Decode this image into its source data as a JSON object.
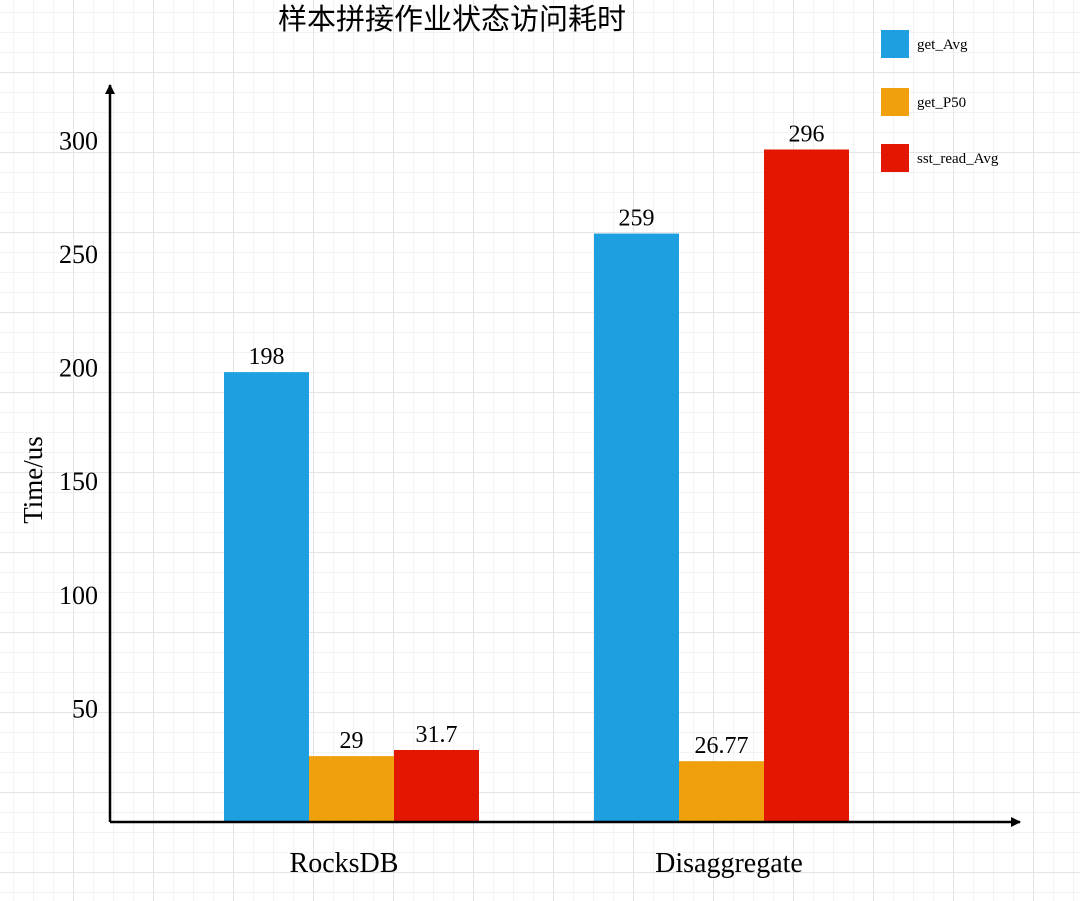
{
  "chart_data": {
    "type": "bar",
    "title": "样本拼接作业状态访问耗时",
    "xlabel": "",
    "ylabel": "Time/us",
    "categories": [
      "RocksDB",
      "Disaggregate"
    ],
    "series": [
      {
        "name": "get_Avg",
        "color": "#1e9fe0",
        "values": [
          198,
          259
        ],
        "labels": [
          "198",
          "259"
        ]
      },
      {
        "name": "get_P50",
        "color": "#f0a00c",
        "values": [
          29,
          26.77
        ],
        "labels": [
          "29",
          "26.77"
        ]
      },
      {
        "name": "sst_read_Avg",
        "color": "#e31600",
        "values": [
          31.7,
          296
        ],
        "labels": [
          "31.7",
          "296"
        ]
      }
    ],
    "yticks": [
      "50",
      "100",
      "150",
      "200",
      "250",
      "300"
    ],
    "ylim": [
      0,
      330
    ],
    "legend_position": "top-right",
    "grid": true
  }
}
